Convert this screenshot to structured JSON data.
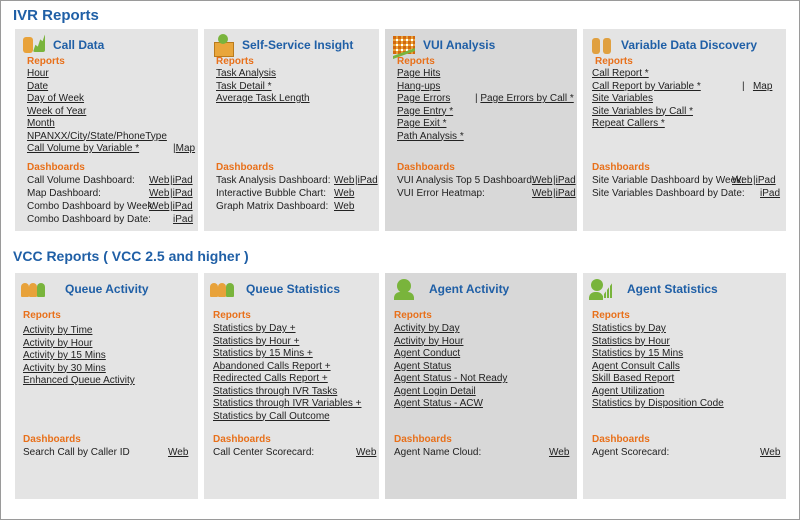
{
  "ivr": {
    "title": "IVR Reports",
    "cards": [
      {
        "title": "Call Data",
        "reports_label": "Reports",
        "reports": [
          "Hour",
          "Date",
          "Day of Week",
          "Week of Year",
          "Month",
          "NPANXX/City/State/PhoneType",
          "Call Volume by Variable *"
        ],
        "reports_extra": "Map",
        "dash_label": "Dashboards",
        "dashboards": [
          {
            "name": "Call Volume Dashboard:",
            "web": "Web",
            "ipad": "iPad"
          },
          {
            "name": "Map Dashboard:",
            "web": "Web",
            "ipad": "iPad"
          },
          {
            "name": "Combo Dashboard by Week:",
            "web": "Web",
            "ipad": "iPad"
          },
          {
            "name": "Combo Dashboard by Date:",
            "web": "",
            "ipad": "iPad"
          }
        ]
      },
      {
        "title": "Self-Service Insight",
        "reports_label": "Reports",
        "reports": [
          "Task Analysis",
          "Task Detail *",
          "Average Task Length"
        ],
        "dash_label": "Dashboards",
        "dashboards": [
          {
            "name": "Task Analysis Dashboard:",
            "web": "Web",
            "ipad": "iPad"
          },
          {
            "name": "Interactive Bubble Chart:",
            "web": "Web",
            "ipad": ""
          },
          {
            "name": "Graph Matrix Dashboard:",
            "web": "Web",
            "ipad": ""
          }
        ]
      },
      {
        "title": "VUI Analysis",
        "reports_label": "Reports",
        "reports": [
          "Page Hits",
          "Hang-ups",
          "Page Errors",
          "Page Entry *",
          "Page Exit *",
          "Path Analysis *"
        ],
        "reports_extra": "Page Errors by Call *",
        "dash_label": "Dashboards",
        "dashboards": [
          {
            "name": "VUI Analysis Top 5 Dashboard:",
            "web": "Web",
            "ipad": "iPad"
          },
          {
            "name": "VUI Error Heatmap:",
            "web": "Web",
            "ipad": "iPad"
          }
        ]
      },
      {
        "title": "Variable Data Discovery",
        "reports_label": "Reports",
        "reports": [
          "Call Report *",
          "Call Report by Variable *",
          "Site Variables",
          "Site Variables by Call *",
          "Repeat Callers *"
        ],
        "reports_extra": "Map",
        "dash_label": "Dashboards",
        "dashboards": [
          {
            "name": "Site Variable Dashboard by Week:",
            "web": "Web",
            "ipad": "iPad"
          },
          {
            "name": "Site Variables Dashboard by Date:",
            "web": "",
            "ipad": "iPad"
          }
        ]
      }
    ]
  },
  "vcc": {
    "title": "VCC Reports ( VCC 2.5 and higher )",
    "cards": [
      {
        "title": "Queue Activity",
        "reports_label": "Reports",
        "reports": [
          "Activity by Time",
          "Activity by Hour",
          "Activity by 15 Mins",
          "Activity by 30 Mins",
          "Enhanced Queue Activity"
        ],
        "dash_label": "Dashboards",
        "dashboards": [
          {
            "name": "Search Call by Caller ID",
            "web": "Web",
            "ipad": ""
          }
        ]
      },
      {
        "title": "Queue Statistics",
        "reports_label": "Reports",
        "reports": [
          "Statistics by Day +",
          "Statistics by Hour +",
          "Statistics by 15 Mins +",
          "Abandoned Calls Report +",
          "Redirected Calls Report +",
          "Statistics through IVR Tasks",
          "Statistics through IVR Variables +",
          "Statistics by Call Outcome"
        ],
        "dash_label": "Dashboards",
        "dashboards": [
          {
            "name": "Call Center Scorecard:",
            "web": "Web",
            "ipad": ""
          }
        ]
      },
      {
        "title": "Agent Activity",
        "reports_label": "Reports",
        "reports": [
          "Activity by Day",
          "Activity by Hour",
          "Agent Conduct",
          "Agent Status",
          "Agent Status - Not Ready",
          "Agent Login Detail",
          "Agent Status - ACW"
        ],
        "dash_label": "Dashboards",
        "dashboards": [
          {
            "name": "Agent Name Cloud:",
            "web": "Web",
            "ipad": ""
          }
        ]
      },
      {
        "title": "Agent Statistics",
        "reports_label": "Reports",
        "reports": [
          "Statistics by Day",
          "Statistics by Hour",
          "Statistics by 15 Mins",
          "Agent Consult Calls",
          "Skill Based Report",
          "Agent Utilization",
          "Statistics by Disposition Code"
        ],
        "dash_label": "Dashboards",
        "dashboards": [
          {
            "name": "Agent Scorecard:",
            "web": "Web",
            "ipad": ""
          }
        ]
      }
    ]
  }
}
